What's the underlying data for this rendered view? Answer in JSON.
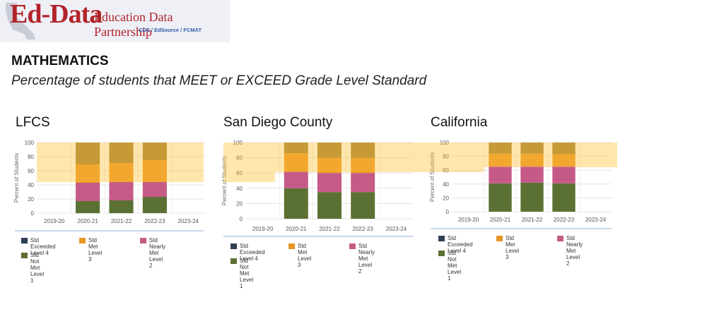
{
  "logo": {
    "main": "Ed-Data",
    "sub": "Education Data Partnership",
    "tag": "CDE / EdSource / FCMAT"
  },
  "header": {
    "subject": "MATHEMATICS",
    "subtitle": "Percentage of students that MEET or EXCEED Grade Level Standard"
  },
  "colors": {
    "level4": "#9e7d34",
    "level3": "#e89525",
    "level2": "#c65a87",
    "level1": "#5b7133",
    "legend_level4": "#2f3e55",
    "highlight": "#ffc43c"
  },
  "legend": [
    {
      "key": "level4",
      "label": "Std Exceeded\nLevel 4"
    },
    {
      "key": "level3",
      "label": "Std Met Level 3"
    },
    {
      "key": "level2",
      "label": "Std Nearly Met\nLevel 2"
    },
    {
      "key": "level1",
      "label": "Std Not Met\nLevel 1"
    }
  ],
  "chart_data": [
    {
      "type": "bar",
      "title": "LFCS",
      "ylabel": "Percent of Students",
      "ylim": [
        0,
        100
      ],
      "yticks": [
        0,
        20,
        40,
        60,
        80,
        100
      ],
      "grid": true,
      "categories": [
        "2019-20",
        "2020-21",
        "2021-22",
        "2022-23",
        "2023-24"
      ],
      "series": [
        {
          "name": "Std Not Met Level 1",
          "values": [
            null,
            17,
            18,
            23,
            null
          ]
        },
        {
          "name": "Std Nearly Met Level 2",
          "values": [
            null,
            26,
            26,
            21,
            null
          ]
        },
        {
          "name": "Std Met Level 3",
          "values": [
            null,
            26,
            27,
            31,
            null
          ]
        },
        {
          "name": "Std Exceeded Level 4",
          "values": [
            null,
            31,
            29,
            25,
            null
          ]
        }
      ]
    },
    {
      "type": "bar",
      "title": "San Diego County",
      "ylabel": "Percent of Students",
      "ylim": [
        0,
        100
      ],
      "yticks": [
        0,
        20,
        40,
        60,
        80,
        100
      ],
      "grid": true,
      "categories": [
        "2019-20",
        "2020-21",
        "2021-22",
        "2022-23",
        "2023-24"
      ],
      "series": [
        {
          "name": "Std Not Met Level 1",
          "values": [
            null,
            40,
            35,
            35,
            null
          ]
        },
        {
          "name": "Std Nearly Met Level 2",
          "values": [
            null,
            22,
            25,
            25,
            null
          ]
        },
        {
          "name": "Std Met Level 3",
          "values": [
            null,
            24,
            20,
            20,
            null
          ]
        },
        {
          "name": "Std Exceeded Level 4",
          "values": [
            null,
            14,
            20,
            20,
            null
          ]
        }
      ]
    },
    {
      "type": "bar",
      "title": "California",
      "ylabel": "Percent of Students",
      "ylim": [
        0,
        100
      ],
      "yticks": [
        0,
        20,
        40,
        60,
        80,
        100
      ],
      "grid": true,
      "categories": [
        "2019-20",
        "2020-21",
        "2021-22",
        "2022-23",
        "2023-24"
      ],
      "series": [
        {
          "name": "Std Not Met Level 1",
          "values": [
            null,
            41,
            42,
            41,
            null
          ]
        },
        {
          "name": "Std Nearly Met Level 2",
          "values": [
            null,
            25,
            24,
            25,
            null
          ]
        },
        {
          "name": "Std Met Level 3",
          "values": [
            null,
            18,
            18,
            17,
            null
          ]
        },
        {
          "name": "Std Exceeded Level 4",
          "values": [
            null,
            16,
            16,
            17,
            null
          ]
        }
      ]
    }
  ]
}
